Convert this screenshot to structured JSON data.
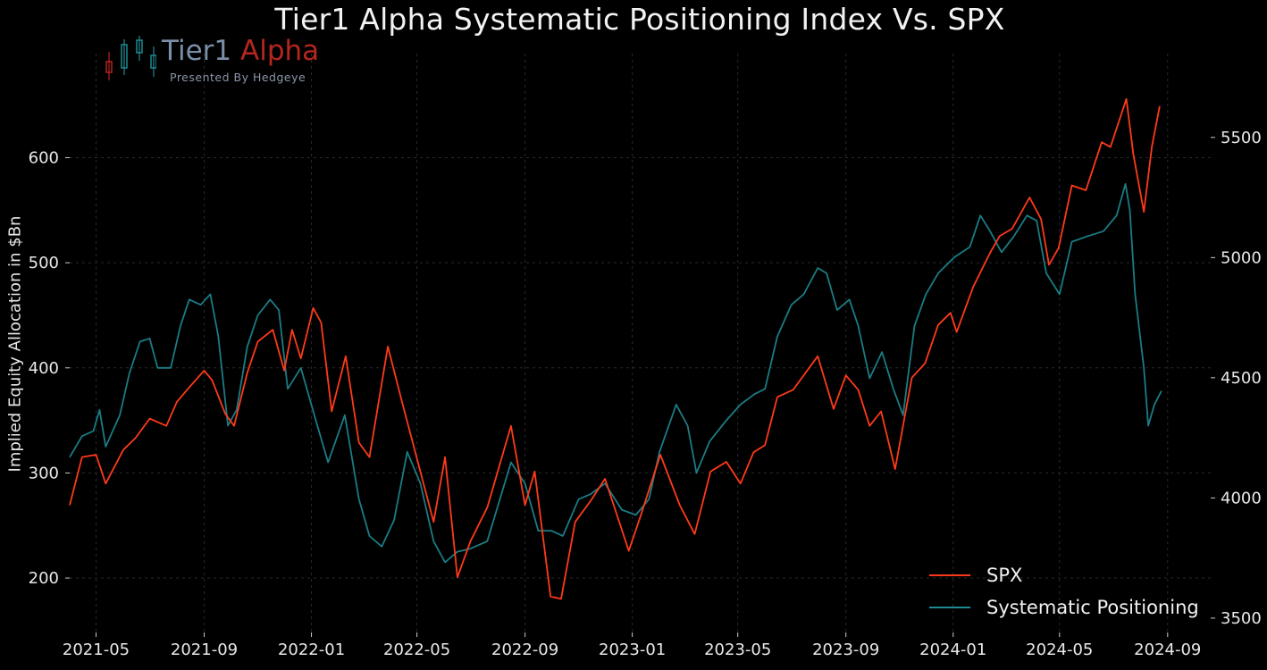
{
  "title": "Tier1 Alpha Systematic Positioning Index Vs. SPX",
  "logo": {
    "brand_part1": "Tier1",
    "brand_part2": "Alpha",
    "subtitle": "Presented By Hedgeye",
    "icon": "candlestick-icon"
  },
  "colors": {
    "spx": "#ff3a1a",
    "systematic": "#1e8a92",
    "background": "#000000",
    "grid": "#2a2a2a"
  },
  "chart_data": {
    "type": "line",
    "title": "Tier1 Alpha Systematic Positioning Index Vs. SPX",
    "ylabel": "Implied Equity Allocation in $Bn",
    "ylabel_right": "",
    "x_range": [
      "2021-04-01",
      "2024-10-20"
    ],
    "ylim_left": [
      155,
      665
    ],
    "ylim_right": [
      3470,
      5700
    ],
    "x_ticks": [
      "2021-05",
      "2021-09",
      "2022-01",
      "2022-05",
      "2022-09",
      "2023-01",
      "2023-05",
      "2023-09",
      "2024-01",
      "2024-05",
      "2024-09"
    ],
    "y_ticks_left": [
      200,
      300,
      400,
      500,
      600
    ],
    "y_ticks_right": [
      3500,
      4000,
      4500,
      5000,
      5500
    ],
    "grid": true,
    "legend_position": "bottom-right",
    "series": [
      {
        "name": "SPX",
        "axis": "right",
        "color": "#ff3a1a",
        "points": [
          [
            "2021-04-01",
            3970
          ],
          [
            "2021-04-15",
            4170
          ],
          [
            "2021-05-01",
            4180
          ],
          [
            "2021-05-12",
            4060
          ],
          [
            "2021-06-01",
            4200
          ],
          [
            "2021-06-15",
            4250
          ],
          [
            "2021-07-01",
            4330
          ],
          [
            "2021-07-20",
            4300
          ],
          [
            "2021-08-01",
            4400
          ],
          [
            "2021-08-15",
            4460
          ],
          [
            "2021-09-01",
            4530
          ],
          [
            "2021-09-10",
            4490
          ],
          [
            "2021-09-25",
            4350
          ],
          [
            "2021-10-05",
            4300
          ],
          [
            "2021-10-20",
            4520
          ],
          [
            "2021-11-01",
            4650
          ],
          [
            "2021-11-18",
            4700
          ],
          [
            "2021-12-01",
            4530
          ],
          [
            "2021-12-10",
            4700
          ],
          [
            "2021-12-20",
            4580
          ],
          [
            "2022-01-03",
            4790
          ],
          [
            "2022-01-12",
            4730
          ],
          [
            "2022-01-24",
            4360
          ],
          [
            "2022-02-09",
            4590
          ],
          [
            "2022-02-24",
            4230
          ],
          [
            "2022-03-08",
            4170
          ],
          [
            "2022-03-29",
            4630
          ],
          [
            "2022-04-14",
            4400
          ],
          [
            "2022-05-02",
            4150
          ],
          [
            "2022-05-20",
            3900
          ],
          [
            "2022-06-02",
            4170
          ],
          [
            "2022-06-16",
            3670
          ],
          [
            "2022-07-01",
            3820
          ],
          [
            "2022-07-20",
            3960
          ],
          [
            "2022-08-16",
            4300
          ],
          [
            "2022-09-01",
            3970
          ],
          [
            "2022-09-12",
            4110
          ],
          [
            "2022-09-30",
            3590
          ],
          [
            "2022-10-12",
            3580
          ],
          [
            "2022-10-28",
            3900
          ],
          [
            "2022-11-15",
            3990
          ],
          [
            "2022-12-01",
            4080
          ],
          [
            "2022-12-28",
            3780
          ],
          [
            "2023-01-10",
            3920
          ],
          [
            "2023-02-02",
            4180
          ],
          [
            "2023-02-24",
            3970
          ],
          [
            "2023-03-13",
            3850
          ],
          [
            "2023-03-31",
            4110
          ],
          [
            "2023-04-18",
            4150
          ],
          [
            "2023-05-04",
            4060
          ],
          [
            "2023-05-19",
            4190
          ],
          [
            "2023-06-01",
            4220
          ],
          [
            "2023-06-15",
            4420
          ],
          [
            "2023-07-03",
            4450
          ],
          [
            "2023-07-31",
            4590
          ],
          [
            "2023-08-18",
            4370
          ],
          [
            "2023-09-01",
            4510
          ],
          [
            "2023-09-15",
            4450
          ],
          [
            "2023-09-28",
            4300
          ],
          [
            "2023-10-11",
            4360
          ],
          [
            "2023-10-27",
            4120
          ],
          [
            "2023-11-15",
            4500
          ],
          [
            "2023-11-30",
            4560
          ],
          [
            "2023-12-15",
            4720
          ],
          [
            "2023-12-29",
            4770
          ],
          [
            "2024-01-05",
            4690
          ],
          [
            "2024-01-24",
            4880
          ],
          [
            "2024-02-12",
            5020
          ],
          [
            "2024-02-23",
            5090
          ],
          [
            "2024-03-08",
            5120
          ],
          [
            "2024-03-28",
            5250
          ],
          [
            "2024-04-10",
            5160
          ],
          [
            "2024-04-19",
            4970
          ],
          [
            "2024-04-30",
            5040
          ],
          [
            "2024-05-15",
            5300
          ],
          [
            "2024-05-31",
            5280
          ],
          [
            "2024-06-18",
            5480
          ],
          [
            "2024-06-28",
            5460
          ],
          [
            "2024-07-16",
            5660
          ],
          [
            "2024-07-24",
            5430
          ],
          [
            "2024-08-05",
            5190
          ],
          [
            "2024-08-14",
            5460
          ],
          [
            "2024-08-23",
            5630
          ]
        ]
      },
      {
        "name": "Systematic Positioning",
        "axis": "left",
        "color": "#1e8a92",
        "points": [
          [
            "2021-04-01",
            315
          ],
          [
            "2021-04-15",
            335
          ],
          [
            "2021-04-28",
            340
          ],
          [
            "2021-05-05",
            360
          ],
          [
            "2021-05-12",
            325
          ],
          [
            "2021-05-28",
            355
          ],
          [
            "2021-06-08",
            395
          ],
          [
            "2021-06-20",
            425
          ],
          [
            "2021-07-01",
            428
          ],
          [
            "2021-07-10",
            400
          ],
          [
            "2021-07-25",
            400
          ],
          [
            "2021-08-05",
            440
          ],
          [
            "2021-08-15",
            465
          ],
          [
            "2021-08-28",
            460
          ],
          [
            "2021-09-08",
            470
          ],
          [
            "2021-09-17",
            430
          ],
          [
            "2021-09-28",
            345
          ],
          [
            "2021-10-08",
            360
          ],
          [
            "2021-10-20",
            420
          ],
          [
            "2021-11-01",
            450
          ],
          [
            "2021-11-15",
            465
          ],
          [
            "2021-11-25",
            455
          ],
          [
            "2021-12-05",
            380
          ],
          [
            "2021-12-20",
            400
          ],
          [
            "2022-01-06",
            350
          ],
          [
            "2022-01-20",
            310
          ],
          [
            "2022-02-08",
            355
          ],
          [
            "2022-02-24",
            275
          ],
          [
            "2022-03-08",
            240
          ],
          [
            "2022-03-22",
            230
          ],
          [
            "2022-04-05",
            255
          ],
          [
            "2022-04-20",
            320
          ],
          [
            "2022-05-05",
            290
          ],
          [
            "2022-05-20",
            235
          ],
          [
            "2022-06-02",
            215
          ],
          [
            "2022-06-16",
            225
          ],
          [
            "2022-07-01",
            228
          ],
          [
            "2022-07-20",
            235
          ],
          [
            "2022-08-16",
            310
          ],
          [
            "2022-09-01",
            290
          ],
          [
            "2022-09-16",
            245
          ],
          [
            "2022-10-01",
            245
          ],
          [
            "2022-10-14",
            240
          ],
          [
            "2022-11-01",
            275
          ],
          [
            "2022-11-15",
            280
          ],
          [
            "2022-12-01",
            290
          ],
          [
            "2022-12-20",
            265
          ],
          [
            "2023-01-05",
            260
          ],
          [
            "2023-01-20",
            275
          ],
          [
            "2023-02-01",
            320
          ],
          [
            "2023-02-20",
            365
          ],
          [
            "2023-03-05",
            345
          ],
          [
            "2023-03-15",
            300
          ],
          [
            "2023-03-30",
            330
          ],
          [
            "2023-04-18",
            350
          ],
          [
            "2023-05-04",
            365
          ],
          [
            "2023-05-20",
            375
          ],
          [
            "2023-06-01",
            380
          ],
          [
            "2023-06-15",
            430
          ],
          [
            "2023-07-01",
            460
          ],
          [
            "2023-07-15",
            470
          ],
          [
            "2023-07-31",
            495
          ],
          [
            "2023-08-10",
            490
          ],
          [
            "2023-08-22",
            455
          ],
          [
            "2023-09-05",
            465
          ],
          [
            "2023-09-15",
            440
          ],
          [
            "2023-09-28",
            390
          ],
          [
            "2023-10-12",
            415
          ],
          [
            "2023-10-25",
            380
          ],
          [
            "2023-11-05",
            355
          ],
          [
            "2023-11-18",
            440
          ],
          [
            "2023-12-01",
            470
          ],
          [
            "2023-12-15",
            490
          ],
          [
            "2024-01-02",
            505
          ],
          [
            "2024-01-20",
            515
          ],
          [
            "2024-02-01",
            545
          ],
          [
            "2024-02-12",
            530
          ],
          [
            "2024-02-25",
            510
          ],
          [
            "2024-03-10",
            525
          ],
          [
            "2024-03-25",
            545
          ],
          [
            "2024-04-05",
            540
          ],
          [
            "2024-04-16",
            490
          ],
          [
            "2024-05-01",
            470
          ],
          [
            "2024-05-15",
            520
          ],
          [
            "2024-06-01",
            525
          ],
          [
            "2024-06-20",
            530
          ],
          [
            "2024-07-05",
            545
          ],
          [
            "2024-07-15",
            575
          ],
          [
            "2024-07-20",
            550
          ],
          [
            "2024-07-26",
            470
          ],
          [
            "2024-08-05",
            400
          ],
          [
            "2024-08-10",
            345
          ],
          [
            "2024-08-17",
            365
          ],
          [
            "2024-08-25",
            378
          ]
        ]
      }
    ]
  }
}
